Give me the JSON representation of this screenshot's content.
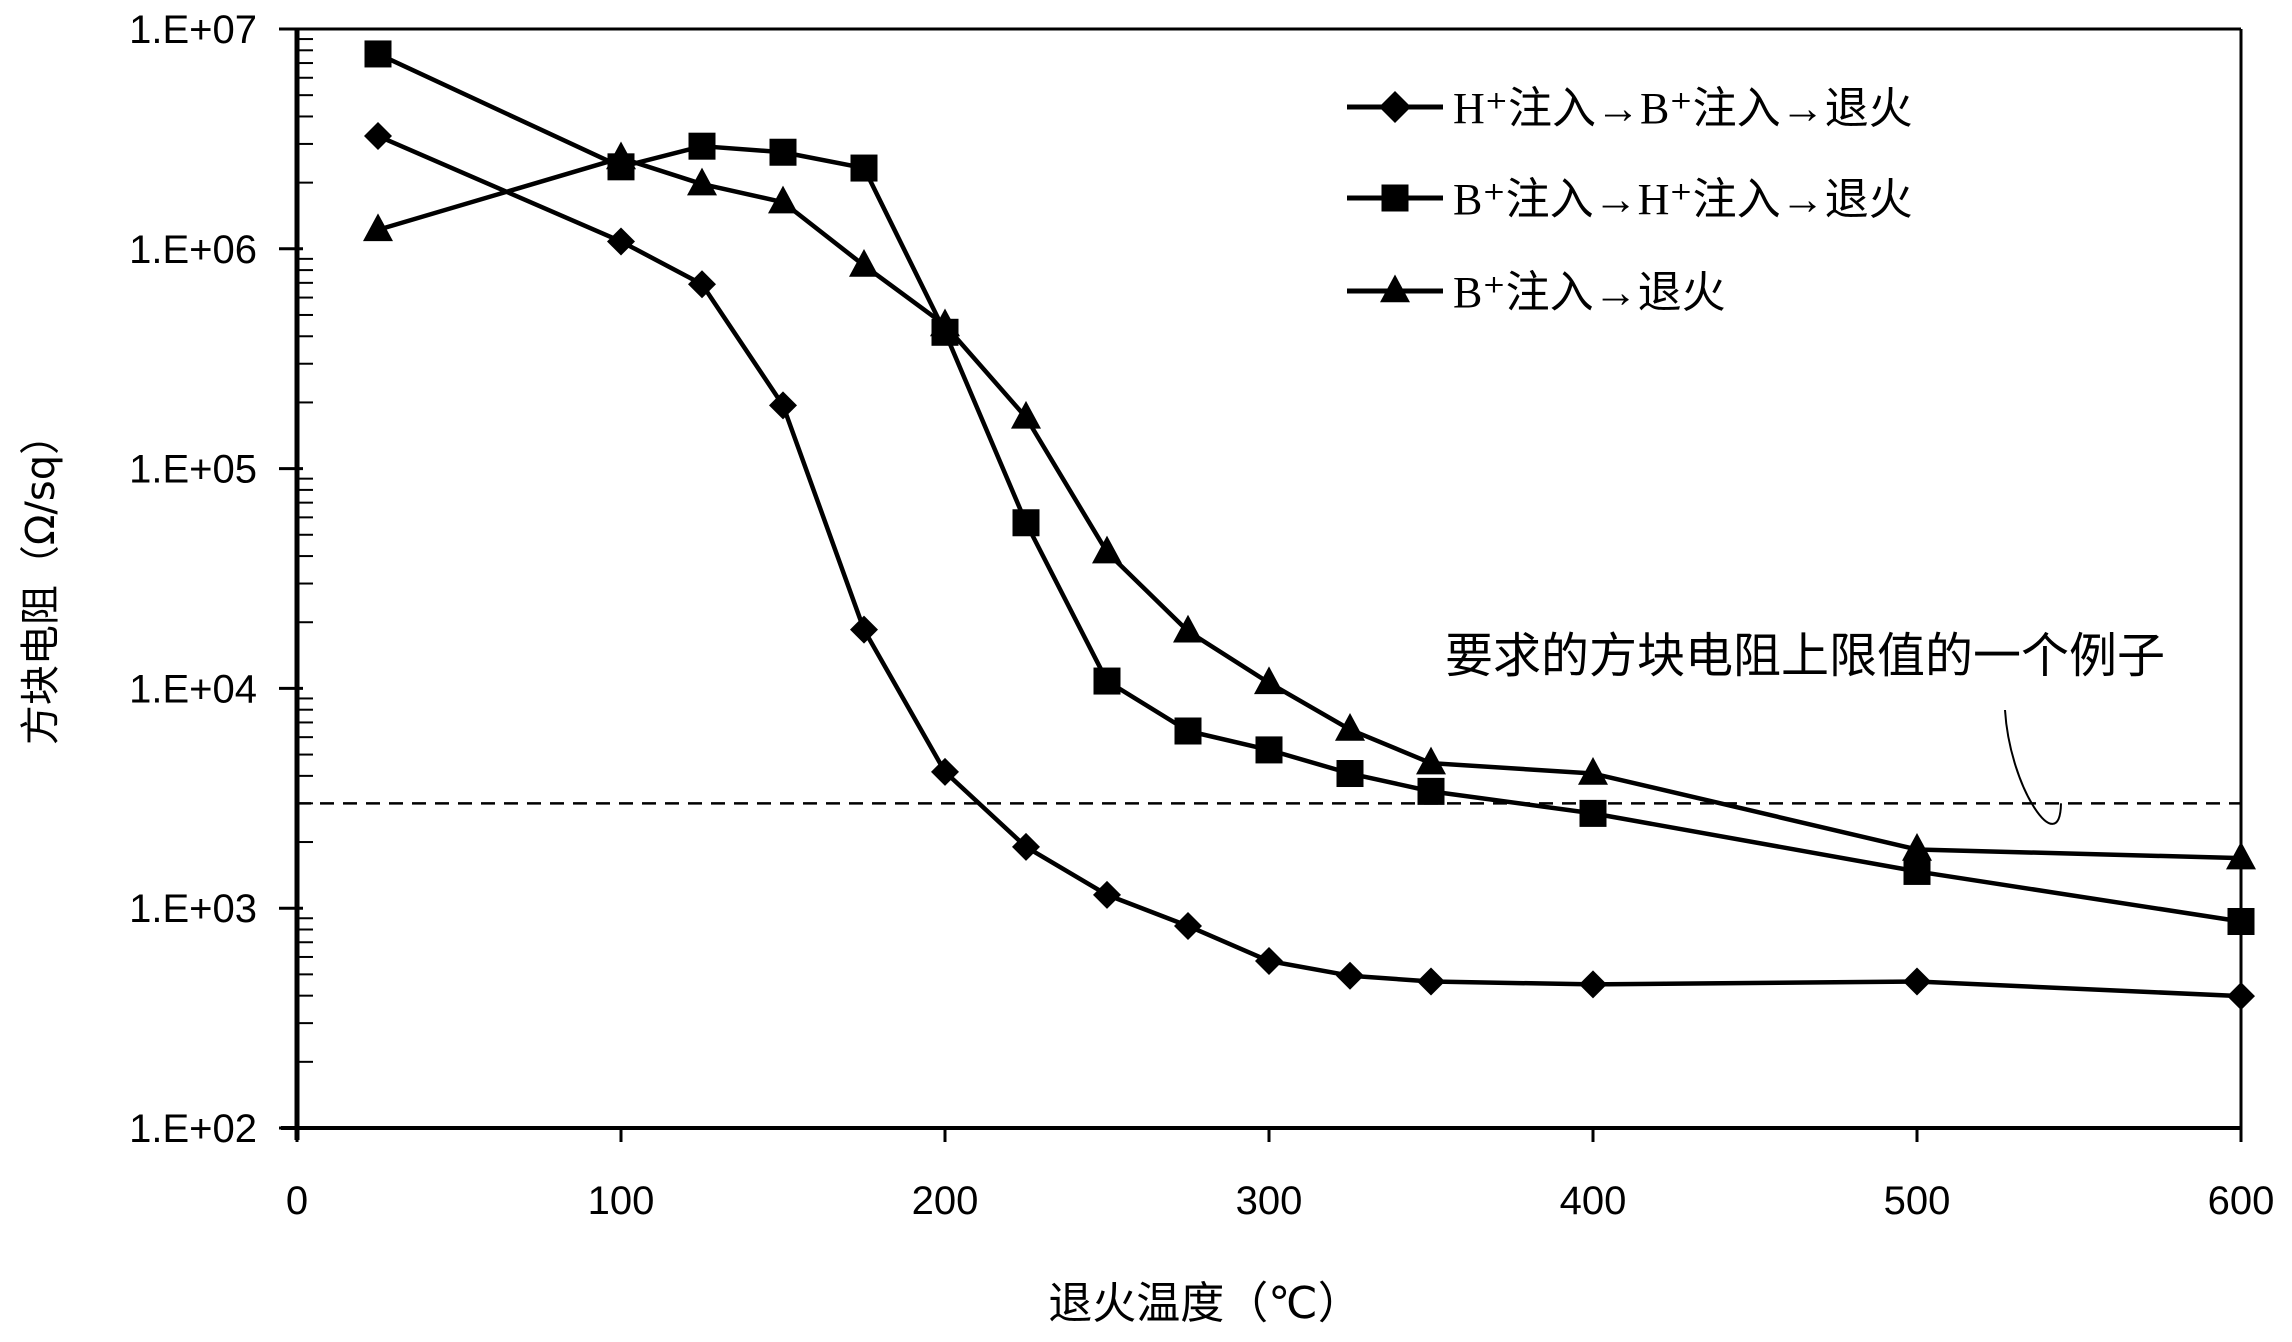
{
  "chart_data": {
    "type": "line",
    "title": "",
    "xlabel": "退火温度（℃）",
    "ylabel": "方块电阻（Ω/sq）",
    "xlim": [
      0,
      600
    ],
    "ylim": [
      100,
      10000000
    ],
    "y_scale": "log",
    "grid": false,
    "legend_position": "top-right",
    "x_ticks": [
      "0",
      "100",
      "200",
      "300",
      "400",
      "500",
      "600"
    ],
    "y_ticks": [
      "1.E+02",
      "1.E+03",
      "1.E+04",
      "1.E+05",
      "1.E+06",
      "1.E+07"
    ],
    "x": [
      25,
      100,
      125,
      150,
      175,
      200,
      225,
      250,
      275,
      300,
      325,
      350,
      400,
      500,
      600
    ],
    "series": [
      {
        "name": "H⁺注入→B⁺注入→退火",
        "marker": "diamond",
        "values": [
          3260000,
          1080000,
          690000,
          194000,
          18500,
          4170,
          1900,
          1150,
          830,
          575,
          493,
          464,
          450,
          464,
          398
        ]
      },
      {
        "name": "B⁺注入→H⁺注入→退火",
        "marker": "square",
        "values": [
          7700000,
          2360000,
          2930000,
          2750000,
          2330000,
          417000,
          56700,
          10800,
          6400,
          5250,
          4100,
          3400,
          2700,
          1470,
          870
        ]
      },
      {
        "name": "B⁺注入→退火",
        "marker": "triangle",
        "values": [
          1220000,
          2590000,
          1970000,
          1630000,
          840000,
          450000,
          171000,
          41700,
          18200,
          10600,
          6500,
          4570,
          4100,
          1850,
          1690
        ]
      }
    ],
    "reference_line": {
      "value": 3000,
      "style": "dashed",
      "label": "要求的方块电阻上限值的一个例子"
    },
    "colors": {
      "lines": "#000000",
      "background": "#ffffff"
    }
  }
}
